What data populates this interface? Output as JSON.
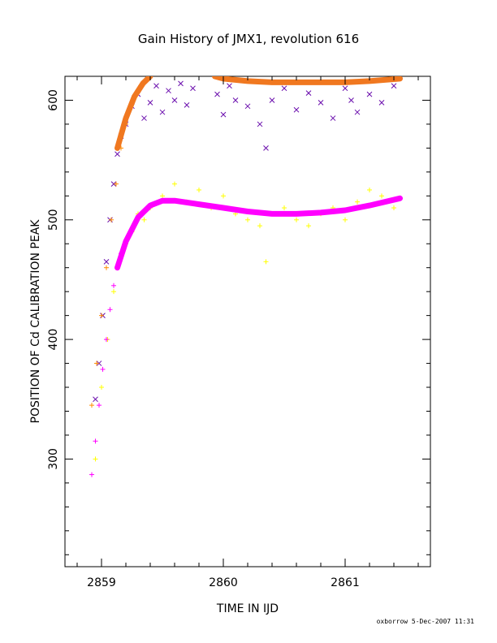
{
  "chart_data": {
    "type": "scatter",
    "title": "Gain History of JMX1, revolution 616",
    "xlabel": "TIME IN IJD",
    "ylabel": "POSITION OF Cd CALIBRATION PEAK",
    "xlim": [
      2858.7,
      2861.7
    ],
    "ylim": [
      210,
      620
    ],
    "xticks": [
      2859,
      2860,
      2861
    ],
    "yticks": [
      300,
      400,
      500,
      600
    ],
    "tick_labels_x": [
      "2859",
      "2860",
      "2861"
    ],
    "tick_labels_y": [
      "300",
      "400",
      "500",
      "600"
    ],
    "footer": "oxborrow   5-Dec-2007 11:31",
    "grid": false,
    "series": [
      {
        "marker": "x",
        "color": "#6a0dad",
        "x": [
          2858.95,
          2858.98,
          2859.01,
          2859.04,
          2859.07,
          2859.1,
          2859.13,
          2859.16,
          2859.2,
          2859.25,
          2859.3,
          2859.35,
          2859.4,
          2859.45,
          2859.5,
          2859.55,
          2859.6,
          2859.65,
          2859.7,
          2859.75,
          2859.95,
          2860.0,
          2860.05,
          2860.1,
          2860.2,
          2860.3,
          2860.35,
          2860.4,
          2860.5,
          2860.6,
          2860.7,
          2860.8,
          2860.9,
          2861.0,
          2861.05,
          2861.1,
          2861.2,
          2861.3,
          2861.4
        ],
        "y": [
          350,
          380,
          420,
          465,
          500,
          530,
          555,
          570,
          580,
          595,
          605,
          585,
          598,
          612,
          590,
          608,
          600,
          614,
          596,
          610,
          605,
          588,
          612,
          600,
          595,
          580,
          560,
          600,
          610,
          592,
          606,
          598,
          585,
          610,
          600,
          590,
          605,
          598,
          612
        ]
      },
      {
        "marker": "+",
        "color": "#ffff00",
        "x": [
          2858.95,
          2859.0,
          2859.05,
          2859.1,
          2859.15,
          2859.2,
          2859.25,
          2859.3,
          2859.35,
          2859.4,
          2859.5,
          2859.6,
          2859.7,
          2859.8,
          2859.9,
          2860.0,
          2860.1,
          2860.2,
          2860.3,
          2860.35,
          2860.4,
          2860.5,
          2860.6,
          2860.7,
          2860.8,
          2860.9,
          2861.0,
          2861.1,
          2861.2,
          2861.3,
          2861.4
        ],
        "y": [
          300,
          360,
          400,
          440,
          465,
          480,
          490,
          505,
          500,
          510,
          520,
          530,
          515,
          525,
          510,
          520,
          505,
          500,
          495,
          465,
          505,
          510,
          500,
          495,
          505,
          510,
          500,
          515,
          525,
          520,
          510
        ]
      },
      {
        "marker": "+",
        "color": "#ff8c00",
        "x": [
          2858.92,
          2858.96,
          2859.0,
          2859.04,
          2859.08,
          2859.12,
          2859.16,
          2859.2,
          2859.24,
          2859.28,
          2859.32,
          2859.36,
          2859.4
        ],
        "y": [
          345,
          380,
          420,
          460,
          500,
          530,
          560,
          580,
          595,
          605,
          612,
          617,
          620
        ]
      },
      {
        "marker": "+",
        "color": "#ff00ff",
        "x": [
          2858.92,
          2858.95,
          2858.98,
          2859.01,
          2859.04,
          2859.07,
          2859.1,
          2859.13,
          2859.16
        ],
        "y": [
          287,
          315,
          345,
          375,
          400,
          425,
          445,
          460,
          472
        ]
      },
      {
        "type": "line",
        "color": "#ff00ff",
        "x": [
          2859.13,
          2859.2,
          2859.3,
          2859.4,
          2859.5,
          2859.6,
          2859.8,
          2860.0,
          2860.2,
          2860.4,
          2860.6,
          2860.8,
          2861.0,
          2861.2,
          2861.45
        ],
        "y": [
          460,
          482,
          502,
          512,
          516,
          516,
          513,
          510,
          507,
          505,
          505,
          506,
          508,
          512,
          518
        ]
      },
      {
        "type": "line",
        "color": "#f07820",
        "x": [
          2859.13,
          2859.2,
          2859.27,
          2859.34,
          2859.4
        ],
        "y": [
          560,
          585,
          603,
          614,
          620
        ]
      },
      {
        "type": "line",
        "color": "#f07820",
        "x": [
          2859.93,
          2860.0,
          2860.2,
          2860.4,
          2860.6,
          2860.8,
          2861.0,
          2861.2,
          2861.45
        ],
        "y": [
          620,
          618,
          616,
          615,
          615,
          615,
          615,
          616,
          618
        ]
      }
    ]
  }
}
